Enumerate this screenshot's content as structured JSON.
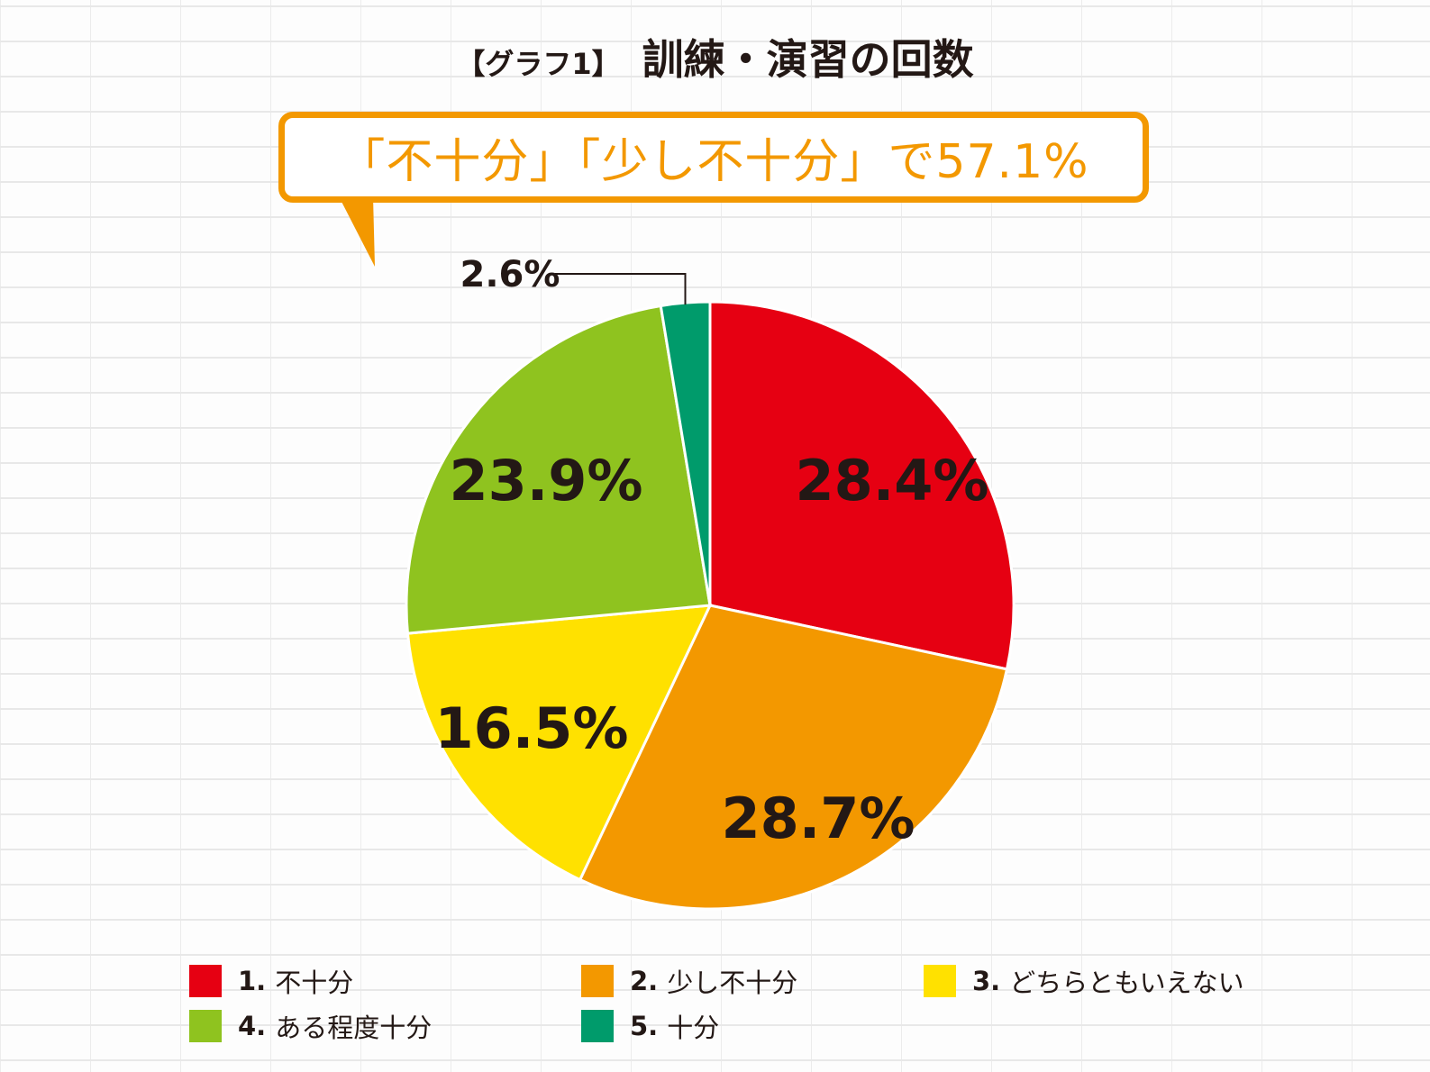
{
  "title": {
    "prefix": "【グラフ1】",
    "main": "訓練・演習の回数"
  },
  "callout": {
    "text": "「不十分」「少し不十分」で57.1%",
    "color": "#f39800"
  },
  "chart_data": {
    "type": "pie",
    "start_angle_deg": 0,
    "direction": "clockwise",
    "slices": [
      {
        "number": "1.",
        "label": "不十分",
        "value": 28.4,
        "text": "28.4%",
        "color": "#e60012"
      },
      {
        "number": "2.",
        "label": "少し不十分",
        "value": 28.7,
        "text": "28.7%",
        "color": "#f39800"
      },
      {
        "number": "3.",
        "label": "どちらともいえない",
        "value": 16.5,
        "text": "16.5%",
        "color": "#ffe100"
      },
      {
        "number": "4.",
        "label": "ある程度十分",
        "value": 23.9,
        "text": "23.9%",
        "color": "#8fc31f"
      },
      {
        "number": "5.",
        "label": "十分",
        "value": 2.6,
        "text": "2.6%",
        "color": "#009b6b"
      }
    ]
  }
}
